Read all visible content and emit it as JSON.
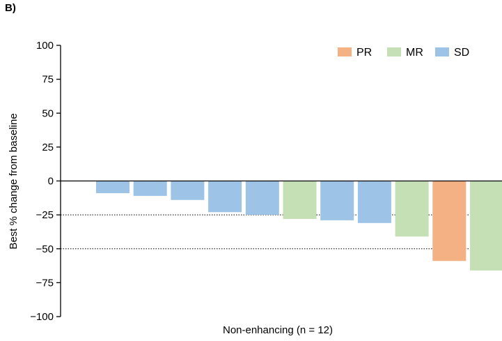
{
  "panel_label": "B)",
  "chart_data": {
    "type": "bar",
    "title": "",
    "xlabel": "Non-enhancing (n = 12)",
    "ylabel": "Best % change from baseline",
    "ylim": [
      -100,
      100
    ],
    "yticks": [
      100,
      75,
      50,
      25,
      0,
      -25,
      -50,
      -75,
      -100
    ],
    "ytick_labels": [
      "100",
      "75",
      "50",
      "25",
      "0",
      "−25",
      "−50",
      "−75",
      "−100"
    ],
    "reference_lines": [
      -25,
      -50
    ],
    "legend_position": "top-right",
    "legend": [
      {
        "name": "PR",
        "color": "#f4b183"
      },
      {
        "name": "MR",
        "color": "#c5e0b4"
      },
      {
        "name": "SD",
        "color": "#9dc3e6"
      }
    ],
    "bars": [
      {
        "value": -9,
        "response": "SD"
      },
      {
        "value": -11,
        "response": "SD"
      },
      {
        "value": -14,
        "response": "SD"
      },
      {
        "value": -23,
        "response": "SD"
      },
      {
        "value": -25,
        "response": "SD"
      },
      {
        "value": -28,
        "response": "MR"
      },
      {
        "value": -29,
        "response": "SD"
      },
      {
        "value": -31,
        "response": "SD"
      },
      {
        "value": -41,
        "response": "MR"
      },
      {
        "value": -59,
        "response": "PR"
      },
      {
        "value": -66,
        "response": "MR"
      }
    ]
  }
}
